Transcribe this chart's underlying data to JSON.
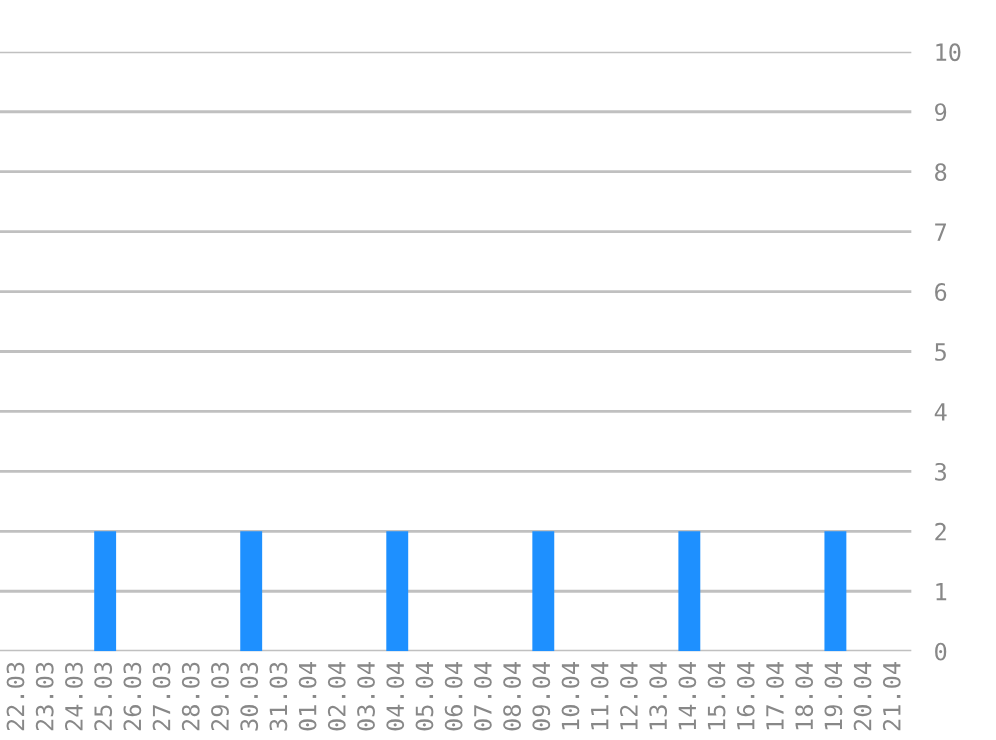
{
  "chart_data": {
    "type": "bar",
    "categories": [
      "22.03",
      "23.03",
      "24.03",
      "25.03",
      "26.03",
      "27.03",
      "28.03",
      "29.03",
      "30.03",
      "31.03",
      "01.04",
      "02.04",
      "03.04",
      "04.04",
      "05.04",
      "06.04",
      "07.04",
      "08.04",
      "09.04",
      "10.04",
      "11.04",
      "12.04",
      "13.04",
      "14.04",
      "15.04",
      "16.04",
      "17.04",
      "18.04",
      "19.04",
      "20.04",
      "21.04"
    ],
    "values": [
      0,
      0,
      0,
      2,
      0,
      0,
      0,
      0,
      2,
      0,
      0,
      0,
      0,
      2,
      0,
      0,
      0,
      0,
      2,
      0,
      0,
      0,
      0,
      2,
      0,
      0,
      0,
      0,
      2,
      0,
      0
    ],
    "color": "#1e90ff",
    "ylim": [
      0,
      10
    ],
    "yticks": [
      0,
      1,
      2,
      3,
      4,
      5,
      6,
      7,
      8,
      9,
      10
    ],
    "grid": "y"
  }
}
